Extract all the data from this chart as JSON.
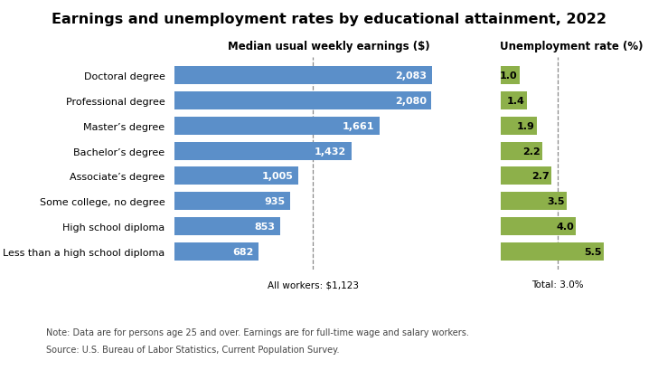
{
  "title": "Earnings and unemployment rates by educational attainment, 2022",
  "categories": [
    "Doctoral degree",
    "Professional degree",
    "Master’s degree",
    "Bachelor’s degree",
    "Associate’s degree",
    "Some college, no degree",
    "High school diploma",
    "Less than a high school diploma"
  ],
  "earnings": [
    2083,
    2080,
    1661,
    1432,
    1005,
    935,
    853,
    682
  ],
  "unemployment": [
    1.0,
    1.4,
    1.9,
    2.2,
    2.7,
    3.5,
    4.0,
    5.5
  ],
  "earnings_color": "#5b8fc9",
  "unemployment_color": "#8db04a",
  "earnings_label": "Median usual weekly earnings ($)",
  "unemployment_label": "Unemployment rate (%)",
  "all_workers_label": "All workers: $1,123",
  "total_label": "Total: 3.0%",
  "all_workers_value": 1123,
  "total_value": 3.0,
  "note_line1": "Note: Data are for persons age 25 and over. Earnings are for full-time wage and salary workers.",
  "note_line2": "Source: U.S. Bureau of Labor Statistics, Current Population Survey.",
  "earnings_xlim": [
    0,
    2500
  ],
  "unemployment_xlim": [
    0,
    7.5
  ],
  "title_fontsize": 11.5,
  "label_fontsize": 8.5,
  "tick_fontsize": 8,
  "note_fontsize": 7
}
